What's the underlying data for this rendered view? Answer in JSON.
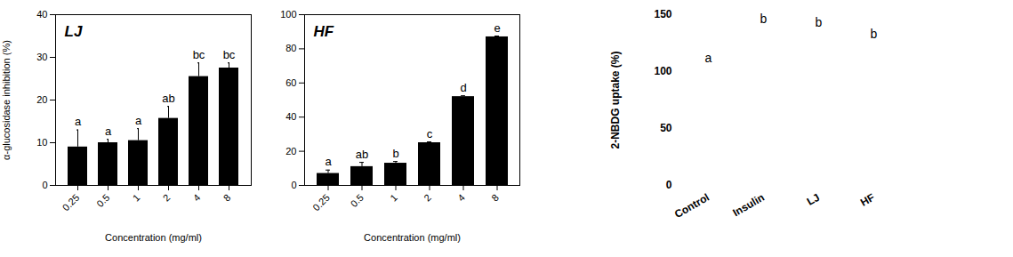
{
  "chart_data": [
    {
      "type": "bar",
      "title": "LJ",
      "xlabel": "Concentration (mg/ml)",
      "ylabel": "α-glucosidase inhibition (%)",
      "categories": [
        "0.25",
        "0.5",
        "1",
        "2",
        "4",
        "8"
      ],
      "values": [
        9,
        10,
        10.5,
        15.7,
        25.5,
        27.5
      ],
      "errors": [
        4,
        0.8,
        2.8,
        2.8,
        3.2,
        1.2
      ],
      "annotations": [
        "a",
        "a",
        "a",
        "ab",
        "bc",
        "bc"
      ],
      "color": "#000000",
      "ylim": [
        0,
        40
      ],
      "yticks": [
        0,
        10,
        20,
        30,
        40
      ]
    },
    {
      "type": "bar",
      "title": "HF",
      "xlabel": "Concentration (mg/ml)",
      "categories": [
        "0.25",
        "0.5",
        "1",
        "2",
        "4",
        "8"
      ],
      "values": [
        7,
        11,
        13,
        25,
        52,
        87
      ],
      "errors": [
        2,
        2.5,
        1,
        0.5,
        0.5,
        0.5
      ],
      "annotations": [
        "a",
        "ab",
        "b",
        "c",
        "d",
        "e"
      ],
      "color": "#000000",
      "ylim": [
        0,
        100
      ],
      "yticks": [
        0,
        20,
        40,
        60,
        80,
        100
      ]
    },
    {
      "type": "text",
      "ylabel": "2-NBDG uptake (%)",
      "categories": [
        "Control",
        "Insulin",
        "LJ",
        "HF"
      ],
      "annotations": [
        {
          "text": "a",
          "y": 112
        },
        {
          "text": "b",
          "y": 146
        },
        {
          "text": "b",
          "y": 143
        },
        {
          "text": "b",
          "y": 133
        }
      ],
      "color": "#000000",
      "ylim": [
        0,
        150
      ],
      "yticks": [
        0,
        50,
        100,
        150
      ]
    }
  ]
}
